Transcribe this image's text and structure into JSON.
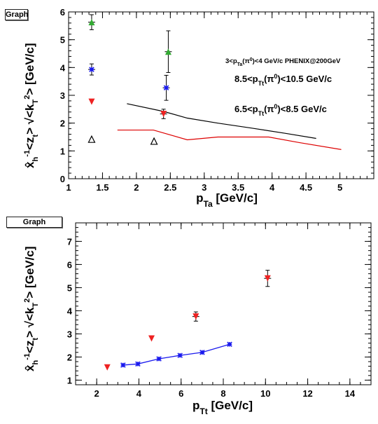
{
  "chart_data": [
    {
      "type": "scatter",
      "title_tag": "Graph",
      "xlabel": "p_Ta [GeV/c]",
      "ylabel": "x̂_h^-1 <z_t> √<k_T^2> [GeV/c]",
      "xlim": [
        1,
        5.5
      ],
      "ylim": [
        0,
        6
      ],
      "x_ticks": [
        "1",
        "1.5",
        "2",
        "2.5",
        "3",
        "3.5",
        "4",
        "4.5",
        "5"
      ],
      "y_ticks": [
        "0",
        "1",
        "2",
        "3",
        "4",
        "5",
        "6"
      ],
      "annotations": [
        "3<p_Ta(π^0)<4 GeV/c PHENIX@200GeV",
        "8.5<p_Tt(π^0)<10.5 GeV/c",
        "6.5<p_Tt(π^0)<8.5 GeV/c"
      ],
      "series": [
        {
          "marker": "triangle-up",
          "color": "#33aa33",
          "points": [
            {
              "x": 1.34,
              "y": 5.63,
              "err": 0.27
            },
            {
              "x": 2.47,
              "y": 4.57,
              "err": 0.75
            }
          ]
        },
        {
          "marker": "star",
          "color": "#1a1aee",
          "points": [
            {
              "x": 1.34,
              "y": 3.93,
              "err": 0.2
            },
            {
              "x": 2.44,
              "y": 3.27,
              "err": 0.45
            }
          ]
        },
        {
          "marker": "triangle-down",
          "color": "#ee2222",
          "points": [
            {
              "x": 1.34,
              "y": 2.77,
              "err": 0.0
            },
            {
              "x": 2.4,
              "y": 2.33,
              "err": 0.17
            }
          ]
        },
        {
          "marker": "triangle-up-open",
          "color": "#000000",
          "points": [
            {
              "x": 1.34,
              "y": 1.42,
              "err": 0.0
            },
            {
              "x": 2.26,
              "y": 1.35,
              "err": 0.0
            }
          ]
        }
      ],
      "curves": [
        {
          "color": "#000000",
          "points": [
            [
              1.86,
              2.7
            ],
            [
              2.4,
              2.42
            ],
            [
              2.75,
              2.18
            ],
            [
              3.2,
              2.0
            ],
            [
              3.7,
              1.82
            ],
            [
              4.2,
              1.63
            ],
            [
              4.65,
              1.45
            ]
          ]
        },
        {
          "color": "#dd0000",
          "points": [
            [
              1.72,
              1.75
            ],
            [
              2.25,
              1.75
            ],
            [
              2.75,
              1.4
            ],
            [
              3.2,
              1.5
            ],
            [
              3.95,
              1.5
            ],
            [
              4.4,
              1.3
            ],
            [
              5.02,
              1.05
            ]
          ]
        }
      ]
    },
    {
      "type": "scatter",
      "title_tag": "Graph",
      "xlabel": "p_Tt [GeV/c]",
      "ylabel": "x̂_h^-1 <z_t> √<k_T^2> [GeV/c]",
      "xlim": [
        1,
        15
      ],
      "ylim": [
        0.8,
        7.8
      ],
      "x_ticks": [
        "2",
        "4",
        "6",
        "8",
        "10",
        "12",
        "14"
      ],
      "y_ticks": [
        "1",
        "2",
        "3",
        "4",
        "5",
        "6",
        "7"
      ],
      "series": [
        {
          "marker": "triangle-down",
          "color": "#ee2222",
          "points": [
            {
              "x": 2.5,
              "y": 1.55,
              "err": 0.0
            },
            {
              "x": 4.6,
              "y": 2.8,
              "err": 0.0
            },
            {
              "x": 6.7,
              "y": 3.75,
              "err": 0.2
            },
            {
              "x": 10.1,
              "y": 5.4,
              "err": 0.35
            }
          ]
        },
        {
          "marker": "star",
          "color": "#1a1aee",
          "connected": true,
          "points": [
            {
              "x": 3.25,
              "y": 1.65,
              "err": 0.0
            },
            {
              "x": 3.95,
              "y": 1.7,
              "err": 0.0
            },
            {
              "x": 4.95,
              "y": 1.92,
              "err": 0.0
            },
            {
              "x": 5.95,
              "y": 2.07,
              "err": 0.0
            },
            {
              "x": 7.0,
              "y": 2.2,
              "err": 0.0
            },
            {
              "x": 8.3,
              "y": 2.55,
              "err": 0.0
            }
          ]
        }
      ]
    }
  ]
}
